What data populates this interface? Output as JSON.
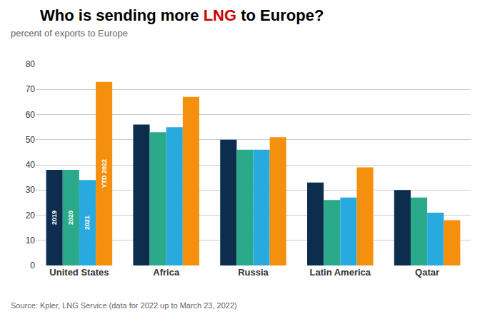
{
  "chart_data": {
    "type": "bar",
    "title": "Who is sending more LNG to Europe?",
    "title_highlight": {
      "text": "LNG",
      "color": "#cc0000"
    },
    "subtitle": "percent of exports to Europe",
    "source": "Source: Kpler, LNG Service (data for 2022 up to March 23, 2022)",
    "categories": [
      "United States",
      "Africa",
      "Russia",
      "Latin America",
      "Qatar"
    ],
    "series": [
      {
        "name": "2019",
        "color": "#0d2d4e",
        "values": [
          38,
          56,
          50,
          33,
          30
        ]
      },
      {
        "name": "2020",
        "color": "#2aaa8a",
        "values": [
          38,
          53,
          46,
          26,
          27
        ]
      },
      {
        "name": "2021",
        "color": "#29aadf",
        "values": [
          34,
          55,
          46,
          27,
          21
        ]
      },
      {
        "name": "YTD 2022",
        "color": "#f5900e",
        "values": [
          73,
          67,
          51,
          39,
          18
        ]
      }
    ],
    "annotations": [
      {
        "text": "2019",
        "series": "2019",
        "category": "United States"
      },
      {
        "text": "2020",
        "series": "2020",
        "category": "United States"
      },
      {
        "text": "2021",
        "series": "2021",
        "category": "United States"
      },
      {
        "text": "YTD 2022",
        "series": "YTD 2022",
        "category": "United States"
      }
    ],
    "ylim": [
      0,
      80
    ],
    "yticks": [
      0,
      10,
      20,
      30,
      40,
      50,
      60,
      70,
      80
    ],
    "grid": true
  }
}
